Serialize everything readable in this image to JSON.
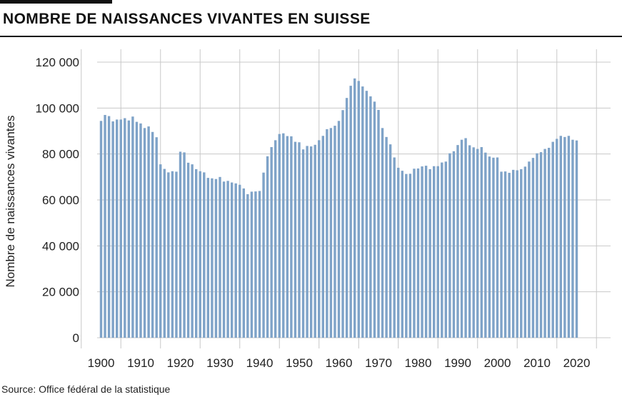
{
  "header": {
    "title": "NOMBRE DE NAISSANCES VIVANTES EN SUISSE"
  },
  "footer": {
    "source": "Source: Office fédéral de la statistique"
  },
  "colors": {
    "bar": "#7fa3c8",
    "grid": "#c8c8c8",
    "text": "#222222",
    "rule": "#111111"
  },
  "chart_data": {
    "type": "bar",
    "title": "NOMBRE DE NAISSANCES VIVANTES EN SUISSE",
    "xlabel": "",
    "ylabel": "Nombre de naissances vivantes",
    "ylim": [
      0,
      120000
    ],
    "xlim": [
      1899,
      2027
    ],
    "yticks": [
      0,
      20000,
      40000,
      60000,
      80000,
      100000,
      120000
    ],
    "ytick_labels": [
      "0",
      "20 000",
      "40 000",
      "60 000",
      "80 000",
      "100 000",
      "120 000"
    ],
    "xticks": [
      1900,
      1910,
      1920,
      1930,
      1940,
      1950,
      1960,
      1970,
      1980,
      1990,
      2000,
      2010,
      2020
    ],
    "xtick_labels": [
      "1900",
      "1910",
      "1920",
      "1930",
      "1940",
      "1950",
      "1960",
      "1970",
      "1980",
      "1990",
      "2000",
      "2010",
      "2020"
    ],
    "grid": true,
    "legend": "none",
    "categories": [
      1900,
      1901,
      1902,
      1903,
      1904,
      1905,
      1906,
      1907,
      1908,
      1909,
      1910,
      1911,
      1912,
      1913,
      1914,
      1915,
      1916,
      1917,
      1918,
      1919,
      1920,
      1921,
      1922,
      1923,
      1924,
      1925,
      1926,
      1927,
      1928,
      1929,
      1930,
      1931,
      1932,
      1933,
      1934,
      1935,
      1936,
      1937,
      1938,
      1939,
      1940,
      1941,
      1942,
      1943,
      1944,
      1945,
      1946,
      1947,
      1948,
      1949,
      1950,
      1951,
      1952,
      1953,
      1954,
      1955,
      1956,
      1957,
      1958,
      1959,
      1960,
      1961,
      1962,
      1963,
      1964,
      1965,
      1966,
      1967,
      1968,
      1969,
      1970,
      1971,
      1972,
      1973,
      1974,
      1975,
      1976,
      1977,
      1978,
      1979,
      1980,
      1981,
      1982,
      1983,
      1984,
      1985,
      1986,
      1987,
      1988,
      1989,
      1990,
      1991,
      1992,
      1993,
      1994,
      1995,
      1996,
      1997,
      1998,
      1999,
      2000,
      2001,
      2002,
      2003,
      2004,
      2005,
      2006,
      2007,
      2008,
      2009,
      2010,
      2011,
      2012,
      2013,
      2014,
      2015,
      2016,
      2017,
      2018,
      2019,
      2020
    ],
    "values": [
      94400,
      97000,
      96500,
      94200,
      95000,
      95000,
      95600,
      94600,
      96300,
      94000,
      93300,
      91300,
      92000,
      89600,
      87300,
      75500,
      73500,
      72000,
      72500,
      72300,
      81000,
      80700,
      76200,
      75500,
      73400,
      72500,
      72000,
      69600,
      69400,
      69100,
      70000,
      68000,
      68300,
      67600,
      67200,
      66600,
      65000,
      62500,
      63600,
      63700,
      63900,
      71900,
      79000,
      83000,
      86000,
      88700,
      89000,
      87800,
      87700,
      85300,
      85100,
      82000,
      83500,
      83300,
      84000,
      86000,
      87900,
      90800,
      91300,
      92300,
      94400,
      99100,
      104400,
      109700,
      112900,
      111800,
      109400,
      107500,
      105100,
      102800,
      99200,
      91300,
      87400,
      84200,
      78500,
      74000,
      72700,
      71300,
      71400,
      73600,
      73700,
      74600,
      74900,
      73400,
      74700,
      74700,
      76300,
      76700,
      80300,
      81200,
      83900,
      86200,
      86900,
      83800,
      82900,
      82200,
      83000,
      80600,
      78900,
      78400,
      78500,
      72300,
      72400,
      71800,
      73100,
      72900,
      73400,
      74500,
      76700,
      78300,
      80300,
      80800,
      82200,
      82700,
      85300,
      86600,
      87900,
      87400,
      87900,
      86200,
      85900
    ]
  }
}
